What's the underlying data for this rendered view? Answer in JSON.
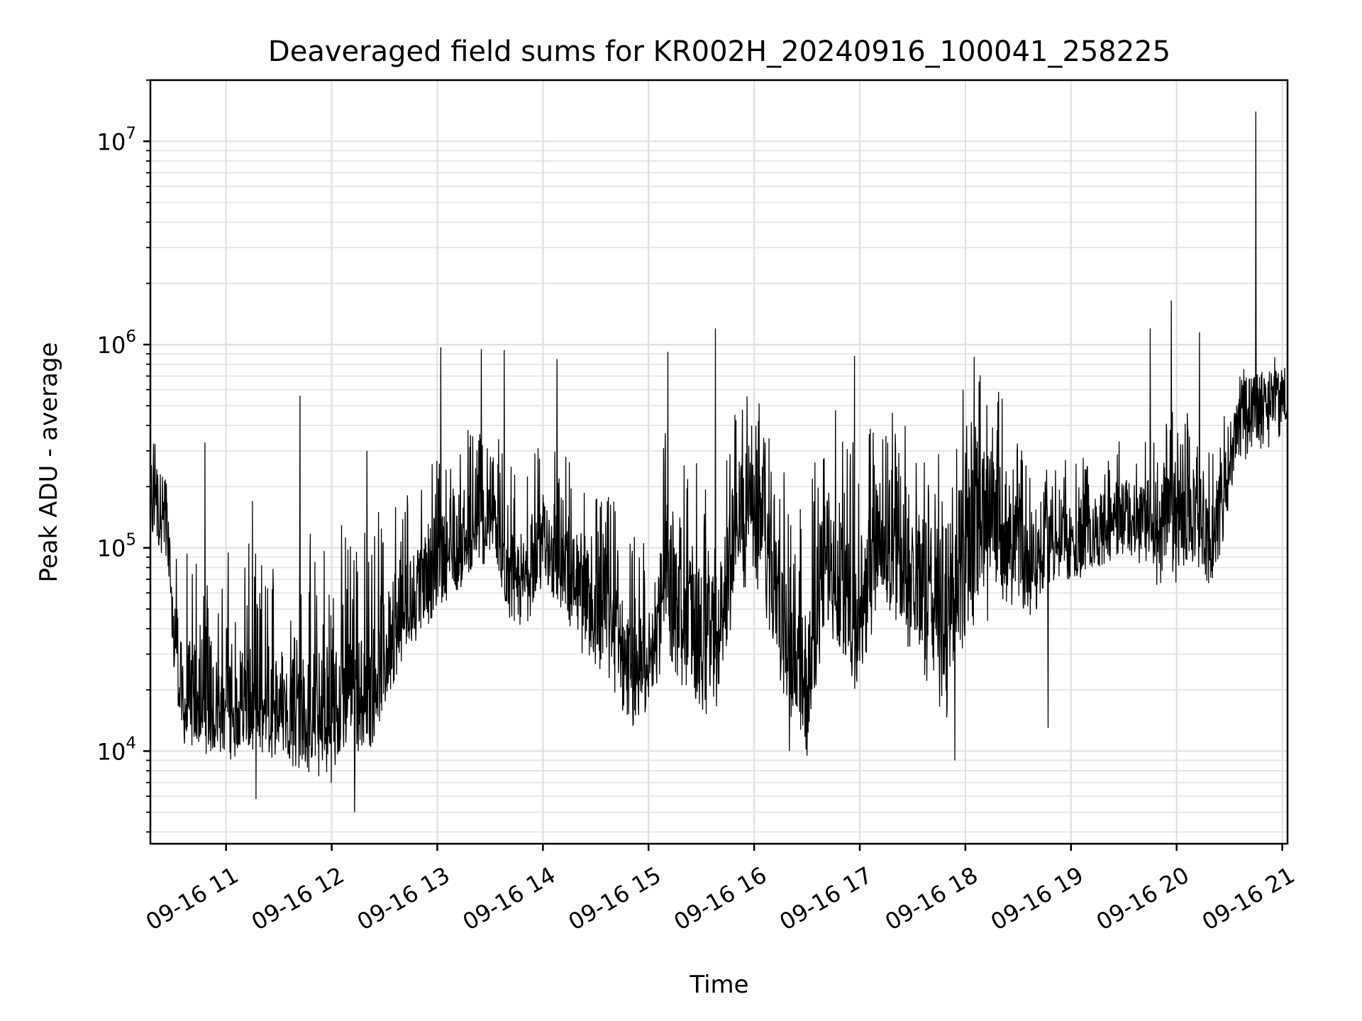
{
  "chart_data": {
    "type": "line",
    "title": "Deaveraged field sums for KR002H_20240916_100041_258225",
    "xlabel": "Time",
    "ylabel": "Peak ADU - average",
    "yscale": "log",
    "xlim": [
      "2024-09-16 10:17",
      "2024-09-16 21:03"
    ],
    "ylim": [
      3500,
      20000000
    ],
    "grid": true,
    "line_color": "#000000",
    "x_ticks": [
      "09-16 11",
      "09-16 12",
      "09-16 13",
      "09-16 14",
      "09-16 15",
      "09-16 16",
      "09-16 17",
      "09-16 18",
      "09-16 19",
      "09-16 20",
      "09-16 21"
    ],
    "x_tick_times": [
      "2024-09-16 11:00",
      "2024-09-16 12:00",
      "2024-09-16 13:00",
      "2024-09-16 14:00",
      "2024-09-16 15:00",
      "2024-09-16 16:00",
      "2024-09-16 17:00",
      "2024-09-16 18:00",
      "2024-09-16 19:00",
      "2024-09-16 20:00",
      "2024-09-16 21:00"
    ],
    "y_ticks": [
      {
        "base": "10",
        "exp": "4",
        "value": 10000
      },
      {
        "base": "10",
        "exp": "5",
        "value": 100000
      },
      {
        "base": "10",
        "exp": "6",
        "value": 1000000
      },
      {
        "base": "10",
        "exp": "7",
        "value": 10000000
      }
    ],
    "series": [
      {
        "x": [
          "2024-09-16 10:17",
          "2024-09-16 10:25",
          "2024-09-16 10:30",
          "2024-09-16 10:35",
          "2024-09-16 10:40",
          "2024-09-16 10:45",
          "2024-09-16 10:50",
          "2024-09-16 10:55",
          "2024-09-16 11:00",
          "2024-09-16 11:10",
          "2024-09-16 11:20",
          "2024-09-16 11:30",
          "2024-09-16 11:40",
          "2024-09-16 11:50",
          "2024-09-16 12:00",
          "2024-09-16 12:10",
          "2024-09-16 12:20",
          "2024-09-16 12:30",
          "2024-09-16 12:40",
          "2024-09-16 12:50",
          "2024-09-16 13:00",
          "2024-09-16 13:10",
          "2024-09-16 13:20",
          "2024-09-16 13:30",
          "2024-09-16 13:40",
          "2024-09-16 13:50",
          "2024-09-16 14:00",
          "2024-09-16 14:10",
          "2024-09-16 14:20",
          "2024-09-16 14:30",
          "2024-09-16 14:40",
          "2024-09-16 14:50",
          "2024-09-16 15:00",
          "2024-09-16 15:10",
          "2024-09-16 15:20",
          "2024-09-16 15:30",
          "2024-09-16 15:40",
          "2024-09-16 15:50",
          "2024-09-16 16:00",
          "2024-09-16 16:10",
          "2024-09-16 16:20",
          "2024-09-16 16:30",
          "2024-09-16 16:40",
          "2024-09-16 16:50",
          "2024-09-16 17:00",
          "2024-09-16 17:10",
          "2024-09-16 17:20",
          "2024-09-16 17:30",
          "2024-09-16 17:40",
          "2024-09-16 17:50",
          "2024-09-16 18:00",
          "2024-09-16 18:10",
          "2024-09-16 18:20",
          "2024-09-16 18:30",
          "2024-09-16 18:40",
          "2024-09-16 18:50",
          "2024-09-16 19:00",
          "2024-09-16 19:10",
          "2024-09-16 19:20",
          "2024-09-16 19:30",
          "2024-09-16 19:40",
          "2024-09-16 19:50",
          "2024-09-16 20:00",
          "2024-09-16 20:10",
          "2024-09-16 20:20",
          "2024-09-16 20:25",
          "2024-09-16 20:30",
          "2024-09-16 20:40",
          "2024-09-16 20:50",
          "2024-09-16 21:00",
          "2024-09-16 21:03"
        ],
        "y": [
          200000,
          160000,
          50000,
          18000,
          19000,
          20000,
          17000,
          17000,
          17000,
          17000,
          16000,
          18000,
          16000,
          15000,
          15000,
          20000,
          18000,
          30000,
          50000,
          65000,
          90000,
          100000,
          120000,
          150000,
          80000,
          70000,
          110000,
          85000,
          60000,
          50000,
          45000,
          22000,
          28000,
          80000,
          50000,
          35000,
          40000,
          150000,
          200000,
          75000,
          30000,
          18000,
          100000,
          70000,
          40000,
          120000,
          90000,
          80000,
          70000,
          40000,
          120000,
          150000,
          130000,
          100000,
          90000,
          120000,
          110000,
          115000,
          130000,
          150000,
          140000,
          130000,
          140000,
          150000,
          110000,
          160000,
          300000,
          500000,
          560000,
          600000,
          450000
        ],
        "y_low": [
          110000,
          90000,
          25000,
          11000,
          10000,
          11000,
          10000,
          10000,
          10000,
          11000,
          9500,
          10000,
          9000,
          9000,
          8500,
          11000,
          10500,
          16000,
          28000,
          35000,
          50000,
          60000,
          70000,
          90000,
          45000,
          40000,
          65000,
          50000,
          32000,
          25000,
          20000,
          12000,
          16000,
          30000,
          20000,
          14000,
          17000,
          55000,
          70000,
          30000,
          15000,
          10000,
          40000,
          25000,
          17000,
          55000,
          40000,
          30000,
          20000,
          13000,
          35000,
          40000,
          50000,
          50000,
          45000,
          65000,
          70000,
          70000,
          80000,
          90000,
          80000,
          60000,
          65000,
          75000,
          65000,
          80000,
          170000,
          280000,
          300000,
          350000,
          300000
        ],
        "y_high": [
          380000,
          300000,
          160000,
          90000,
          120000,
          110000,
          90000,
          80000,
          100000,
          110000,
          95000,
          110000,
          120000,
          130000,
          140000,
          150000,
          130000,
          170000,
          200000,
          220000,
          280000,
          300000,
          450000,
          400000,
          320000,
          300000,
          350000,
          300000,
          250000,
          200000,
          180000,
          120000,
          150000,
          450000,
          300000,
          250000,
          200000,
          550000,
          600000,
          350000,
          200000,
          150000,
          700000,
          500000,
          300000,
          600000,
          500000,
          350000,
          400000,
          250000,
          700000,
          800000,
          600000,
          400000,
          320000,
          350000,
          280000,
          300000,
          320000,
          350000,
          320000,
          400000,
          500000,
          450000,
          300000,
          380000,
          600000,
          800000,
          900000,
          850000,
          700000
        ],
        "spikes": [
          {
            "x": "2024-09-16 10:48",
            "y": 330000
          },
          {
            "x": "2024-09-16 11:15",
            "y": 170000
          },
          {
            "x": "2024-09-16 11:17",
            "y": 5800
          },
          {
            "x": "2024-09-16 11:42",
            "y": 560000
          },
          {
            "x": "2024-09-16 12:13",
            "y": 5000
          },
          {
            "x": "2024-09-16 12:20",
            "y": 300000
          },
          {
            "x": "2024-09-16 13:02",
            "y": 970000
          },
          {
            "x": "2024-09-16 13:25",
            "y": 950000
          },
          {
            "x": "2024-09-16 13:38",
            "y": 940000
          },
          {
            "x": "2024-09-16 14:08",
            "y": 850000
          },
          {
            "x": "2024-09-16 15:11",
            "y": 920000
          },
          {
            "x": "2024-09-16 15:38",
            "y": 1200000
          },
          {
            "x": "2024-09-16 16:20",
            "y": 10000
          },
          {
            "x": "2024-09-16 16:57",
            "y": 880000
          },
          {
            "x": "2024-09-16 17:54",
            "y": 9000
          },
          {
            "x": "2024-09-16 18:05",
            "y": 870000
          },
          {
            "x": "2024-09-16 18:47",
            "y": 13000
          },
          {
            "x": "2024-09-16 19:45",
            "y": 1200000
          },
          {
            "x": "2024-09-16 19:57",
            "y": 1650000
          },
          {
            "x": "2024-09-16 20:13",
            "y": 1150000
          },
          {
            "x": "2024-09-16 20:45",
            "y": 14000000
          }
        ]
      }
    ]
  }
}
